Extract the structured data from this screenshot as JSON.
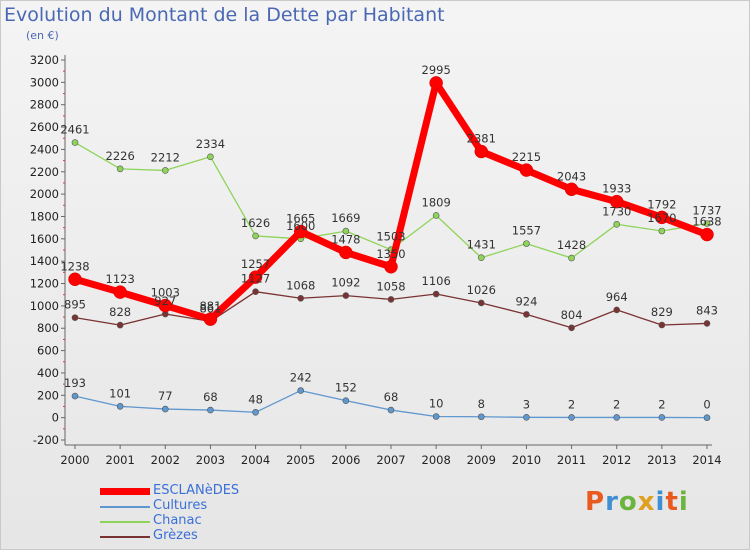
{
  "title": "Evolution du Montant de la Dette par Habitant",
  "subtitle": "(en €)",
  "logo": {
    "text": "Proxiti",
    "colors": [
      "#e85a1e",
      "#3f8fd4",
      "#6bb43e",
      "#e0a020",
      "#3f8fd4",
      "#e85a1e",
      "#6bb43e"
    ]
  },
  "chart_data": {
    "type": "line",
    "title": "Evolution du Montant de la Dette par Habitant",
    "subtitle": "(en €)",
    "xlabel": "",
    "ylabel": "",
    "x": [
      "2000",
      "2001",
      "2002",
      "2003",
      "2004",
      "2005",
      "2006",
      "2007",
      "2008",
      "2009",
      "2010",
      "2011",
      "2012",
      "2013",
      "2014"
    ],
    "ylim": [
      -200,
      3200
    ],
    "yticks": [
      -200,
      0,
      200,
      400,
      600,
      800,
      1000,
      1200,
      1400,
      1600,
      1800,
      2000,
      2200,
      2400,
      2600,
      2800,
      3000,
      3200
    ],
    "grid": false,
    "legend_position": "bottom-left",
    "series": [
      {
        "name": "ESCLANèDES",
        "color": "#ff0000",
        "width": 7,
        "values": [
          1238,
          1123,
          1003,
          881,
          1257,
          1665,
          1478,
          1350,
          2995,
          2381,
          2215,
          2043,
          1933,
          1792,
          1638
        ],
        "labels": [
          "1238",
          "1123",
          "1003",
          "881",
          "1257",
          "1665",
          "1478",
          "1350",
          "2995",
          "2381",
          "2215",
          "2043",
          "1933",
          "1792",
          "1638"
        ]
      },
      {
        "name": "Cultures",
        "color": "#5f97cf",
        "width": 1.3,
        "values": [
          193,
          101,
          77,
          68,
          48,
          242,
          152,
          68,
          10,
          8,
          3,
          2,
          2,
          2,
          0
        ],
        "labels": [
          "193",
          "101",
          "77",
          "68",
          "48",
          "242",
          "152",
          "68",
          "10",
          "8",
          "3",
          "2",
          "2",
          "2",
          "0"
        ]
      },
      {
        "name": "Chanac",
        "color": "#8fd45a",
        "width": 1.3,
        "values": [
          2461,
          2226,
          2212,
          2334,
          1626,
          1600,
          1669,
          1503,
          1809,
          1431,
          1557,
          1428,
          1730,
          1670,
          1737
        ],
        "labels": [
          "2461",
          "2226",
          "2212",
          "2334",
          "1626",
          "1600",
          "1669",
          "1503",
          "1809",
          "1431",
          "1557",
          "1428",
          "1730",
          "1670",
          "1737"
        ]
      },
      {
        "name": "Grèzes",
        "color": "#7a3333",
        "width": 1.3,
        "values": [
          895,
          828,
          927,
          861,
          1127,
          1068,
          1092,
          1058,
          1106,
          1026,
          924,
          804,
          964,
          829,
          843
        ],
        "labels": [
          "895",
          "828",
          "927",
          "861",
          "1127",
          "1068",
          "1092",
          "1058",
          "1106",
          "1026",
          "924",
          "804",
          "964",
          "829",
          "843"
        ]
      }
    ]
  }
}
